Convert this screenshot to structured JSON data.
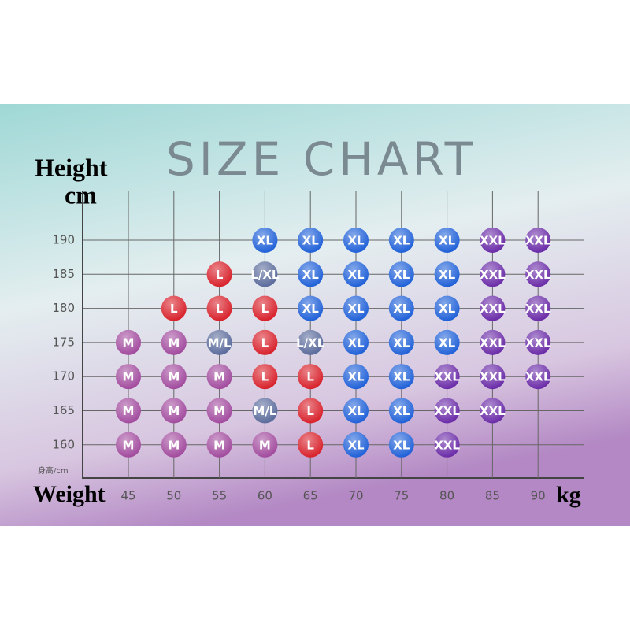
{
  "title": "SIZE CHART",
  "y_label": [
    "Height",
    "cm"
  ],
  "x_label": "Weight",
  "x_unit": "kg",
  "y_corner": "身高/cm",
  "weights": [
    45,
    50,
    55,
    60,
    65,
    70,
    75,
    80,
    85,
    90
  ],
  "heights": [
    190,
    185,
    180,
    175,
    170,
    165,
    160
  ],
  "colors": {
    "M": "#a24b9e",
    "L": "#d8212b",
    "XL": "#2061d8",
    "XXL": "#6b2ca8",
    "M/L": "#5b6b9c",
    "L/XL": "#5b6b9c"
  },
  "rows": [
    [
      null,
      null,
      null,
      "XL",
      "XL",
      "XL",
      "XL",
      "XL",
      "XXL",
      "XXL"
    ],
    [
      null,
      null,
      "L",
      "L/XL",
      "XL",
      "XL",
      "XL",
      "XL",
      "XXL",
      "XXL"
    ],
    [
      null,
      "L",
      "L",
      "L",
      "XL",
      "XL",
      "XL",
      "XL",
      "XXL",
      "XXL"
    ],
    [
      "M",
      "M",
      "M/L",
      "L",
      "L/XL",
      "XL",
      "XL",
      "XL",
      "XXL",
      "XXL"
    ],
    [
      "M",
      "M",
      "M",
      "L",
      "L",
      "XL",
      "XL",
      "XXL",
      "XXL",
      "XXL"
    ],
    [
      "M",
      "M",
      "M",
      "M/L",
      "L",
      "XL",
      "XL",
      "XXL",
      "XXL",
      null
    ],
    [
      "M",
      "M",
      "M",
      "M",
      "L",
      "XL",
      "XL",
      "XXL",
      null,
      null
    ]
  ]
}
